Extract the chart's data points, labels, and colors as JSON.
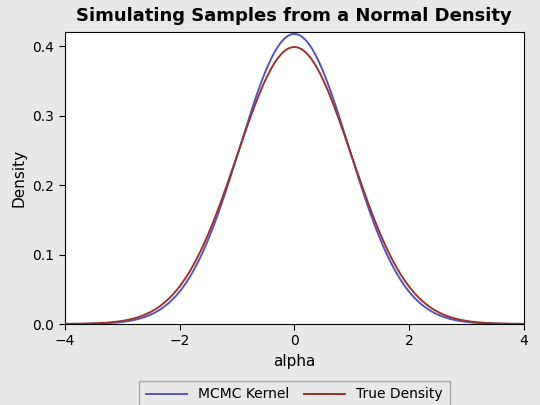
{
  "title": "Simulating Samples from a Normal Density",
  "xlabel": "alpha",
  "ylabel": "Density",
  "xlim": [
    -4,
    4
  ],
  "ylim": [
    0,
    0.42
  ],
  "yticks": [
    0.0,
    0.1,
    0.2,
    0.3,
    0.4
  ],
  "xticks": [
    -4,
    -2,
    0,
    2,
    4
  ],
  "mcmc_color": "#5555bb",
  "true_color": "#993333",
  "mcmc_label": "MCMC Kernel",
  "true_label": "True Density",
  "mcmc_mean": 0.0,
  "mcmc_std": 0.955,
  "true_mean": 0.0,
  "true_std": 1.0,
  "line_width": 1.4,
  "bg_color": "#ffffff",
  "plot_bg_color": "#ffffff",
  "outer_bg_color": "#e8e8e8",
  "legend_bg_color": "#e8e8e8",
  "title_fontsize": 13,
  "label_fontsize": 11,
  "tick_fontsize": 10,
  "legend_fontsize": 10
}
